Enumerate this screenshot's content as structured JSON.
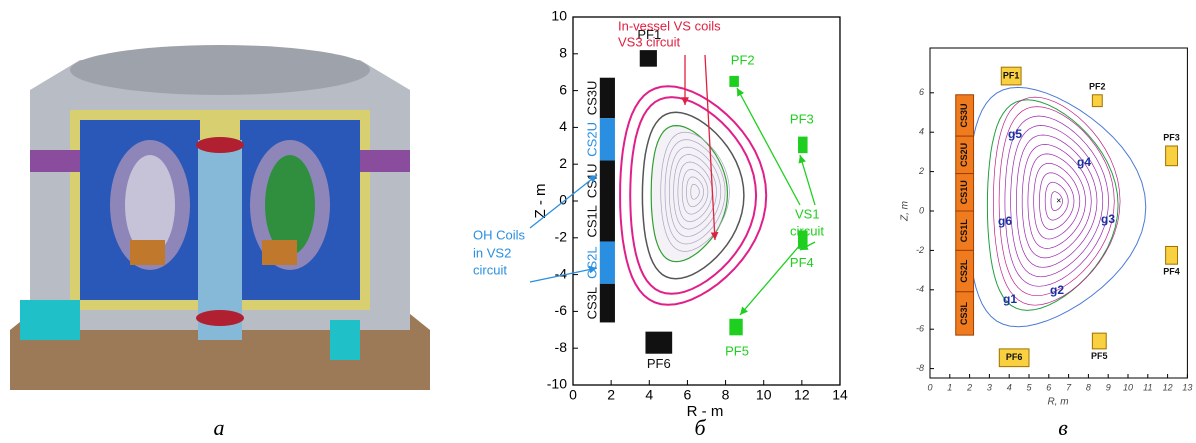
{
  "panels": [
    {
      "caption": "а"
    },
    {
      "caption": "б",
      "x_axis_label": "R - m",
      "y_axis_label": "Z - m",
      "xticks": [
        0,
        2,
        4,
        6,
        8,
        10,
        12,
        14
      ],
      "yticks": [
        -10,
        -8,
        -6,
        -4,
        -2,
        0,
        2,
        4,
        6,
        8,
        10
      ],
      "cs_coils": [
        "CS3U",
        "CS2U",
        "CS1U",
        "CS1L",
        "CS2L",
        "CS3L"
      ],
      "pf_coils": [
        "PF1",
        "PF2",
        "PF3",
        "PF4",
        "PF5",
        "PF6"
      ],
      "annotations": [
        "In-vessel VS coils",
        "VS3 circuit",
        "OH Coils",
        "in VS2",
        "circuit",
        "VS1",
        "circuit"
      ]
    },
    {
      "caption": "в",
      "x_axis_label": "R, m",
      "y_axis_label": "Z, m",
      "xticks": [
        0,
        1,
        2,
        3,
        4,
        5,
        6,
        7,
        8,
        9,
        10,
        11,
        12,
        13
      ],
      "yticks": [
        -8,
        -6,
        -4,
        -2,
        0,
        2,
        4,
        6
      ],
      "cs_coils": [
        "CS3U",
        "CS2U",
        "CS1U",
        "CS1L",
        "CS2L",
        "CS3L"
      ],
      "pf_coils": [
        "PF1",
        "PF2",
        "PF3",
        "PF4",
        "PF5",
        "PF6"
      ],
      "gaps": [
        "g1",
        "g2",
        "g3",
        "g4",
        "g5",
        "g6"
      ]
    }
  ]
}
